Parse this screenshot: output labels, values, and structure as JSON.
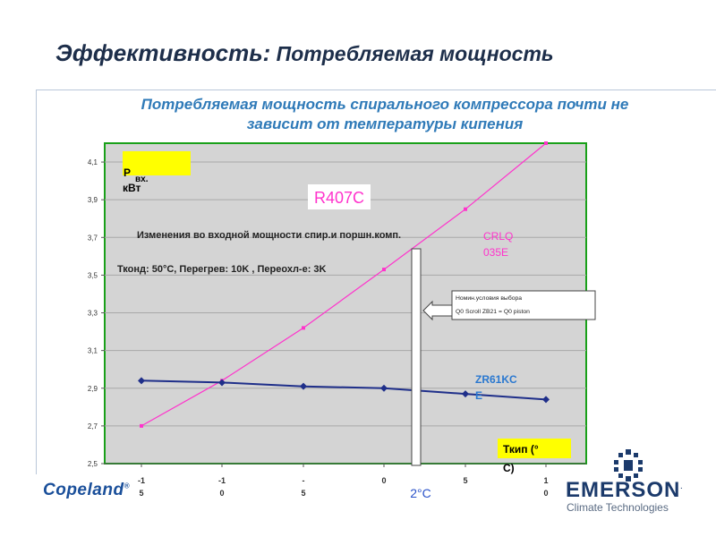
{
  "slide": {
    "title_bold": "Эффективность:",
    "title_rest": " Потребляемая мощность",
    "subtitle_line1": "Потребляемая мощность спирального компрессора почти не",
    "subtitle_line2": "зависит от температуры кипения"
  },
  "chart_data": {
    "type": "line",
    "x": [
      -15,
      -10,
      -5,
      0,
      5,
      10
    ],
    "x_tick_labels": [
      "-15",
      "-10",
      "-5",
      "0",
      "5",
      "10"
    ],
    "ylim": [
      2.5,
      4.2
    ],
    "y_ticks": [
      2.5,
      2.7,
      2.9,
      3.1,
      3.3,
      3.5,
      3.7,
      3.9,
      4.1
    ],
    "y_tick_labels": [
      "2,5",
      "2,7",
      "2,9",
      "3,1",
      "3,3",
      "3,5",
      "3,7",
      "3,9",
      "4,1"
    ],
    "grid": true,
    "series": [
      {
        "name": "CRLQ 035E",
        "values": [
          2.7,
          2.94,
          3.22,
          3.53,
          3.85,
          4.2
        ],
        "color": "#ff33cc",
        "marker": "square"
      },
      {
        "name": "ZR61KCE",
        "values": [
          2.94,
          2.93,
          2.91,
          2.9,
          2.87,
          2.84
        ],
        "color": "#1f2f8a",
        "marker": "diamond"
      }
    ],
    "ylabel_main": "P",
    "ylabel_sub": "вх.",
    "ylabel_unit": "кВт",
    "xlabel": "Ткип (°С)",
    "refrigerant": "R407C",
    "annotation_title": "Изменения во входной мощности спир.и поршн.комп.",
    "annotation_conditions": "Тконд: 50°C, Перегрев: 10K , Переохл-е: 3K",
    "callout_line1": "Номин.условия выбора",
    "callout_line2": "Q0 Scroll ZB21  = Q0 piston",
    "marker_x": 2,
    "marker_label": "2°C",
    "colors": {
      "plot_bg": "#d4d4d4",
      "plot_border": "#19a019",
      "label_box": "#ffff00",
      "accent": "#ff33cc"
    }
  },
  "footer": {
    "copeland": "Copeland",
    "emerson": "EMERSON",
    "emerson_sub": "Climate Technologies"
  }
}
